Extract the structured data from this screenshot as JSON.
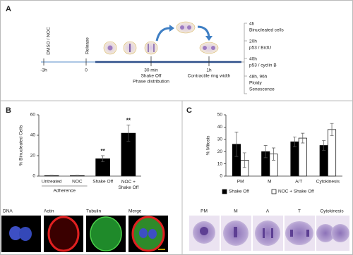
{
  "panel_a": {
    "label": "A",
    "treatment": "DMSO / NOC",
    "release": "Release",
    "times": [
      "-3h",
      "0"
    ],
    "events": [
      [
        "30 min",
        "Shake Off",
        "Phase distribution"
      ],
      [
        "1h",
        "Contractile ring width"
      ]
    ],
    "readouts": [
      [
        "4h",
        "Binucleated cells"
      ],
      [
        "20h",
        "p53 / BrdU"
      ],
      [
        "40h",
        "p53 / cyclin B"
      ],
      [
        "48h, 96h",
        "Ploidy",
        "Senescence"
      ]
    ]
  },
  "panel_b": {
    "label": "B",
    "image_labels": [
      "DNA",
      "Actin",
      "Tubulin",
      "Merge"
    ]
  },
  "panel_c": {
    "label": "C",
    "image_labels": [
      "PM",
      "M",
      "A",
      "T",
      "Cytokinesis"
    ]
  },
  "chart_data": [
    {
      "type": "bar",
      "ylabel": "% Binucleated Cells",
      "categories": [
        "Untreated",
        "NOC",
        "Shake Off",
        "NOC + Shake Off"
      ],
      "values": [
        0.5,
        0.5,
        17,
        42
      ],
      "errors": [
        0.3,
        0.3,
        3,
        8
      ],
      "color": "#000000",
      "significance": [
        null,
        null,
        "**",
        "**"
      ],
      "group_labels": [
        "Adherence",
        "Adherence",
        null,
        null
      ],
      "ylim": [
        0,
        60
      ],
      "yticks": [
        0,
        20,
        40,
        60
      ]
    },
    {
      "type": "bar",
      "ylabel": "% Mitosis",
      "categories": [
        "PM",
        "M",
        "A/T",
        "Cytokinesis"
      ],
      "series": [
        {
          "name": "Shake Off",
          "color": "#000000",
          "values": [
            26,
            20,
            28,
            25
          ],
          "errors": [
            10,
            5,
            4,
            4
          ]
        },
        {
          "name": "NOC + Shake Off",
          "color": "#ffffff",
          "values": [
            13,
            18,
            31,
            38
          ],
          "errors": [
            6,
            5,
            4,
            5
          ]
        }
      ],
      "ylim": [
        0,
        50
      ],
      "yticks": [
        0,
        10,
        20,
        30,
        40,
        50
      ]
    }
  ]
}
